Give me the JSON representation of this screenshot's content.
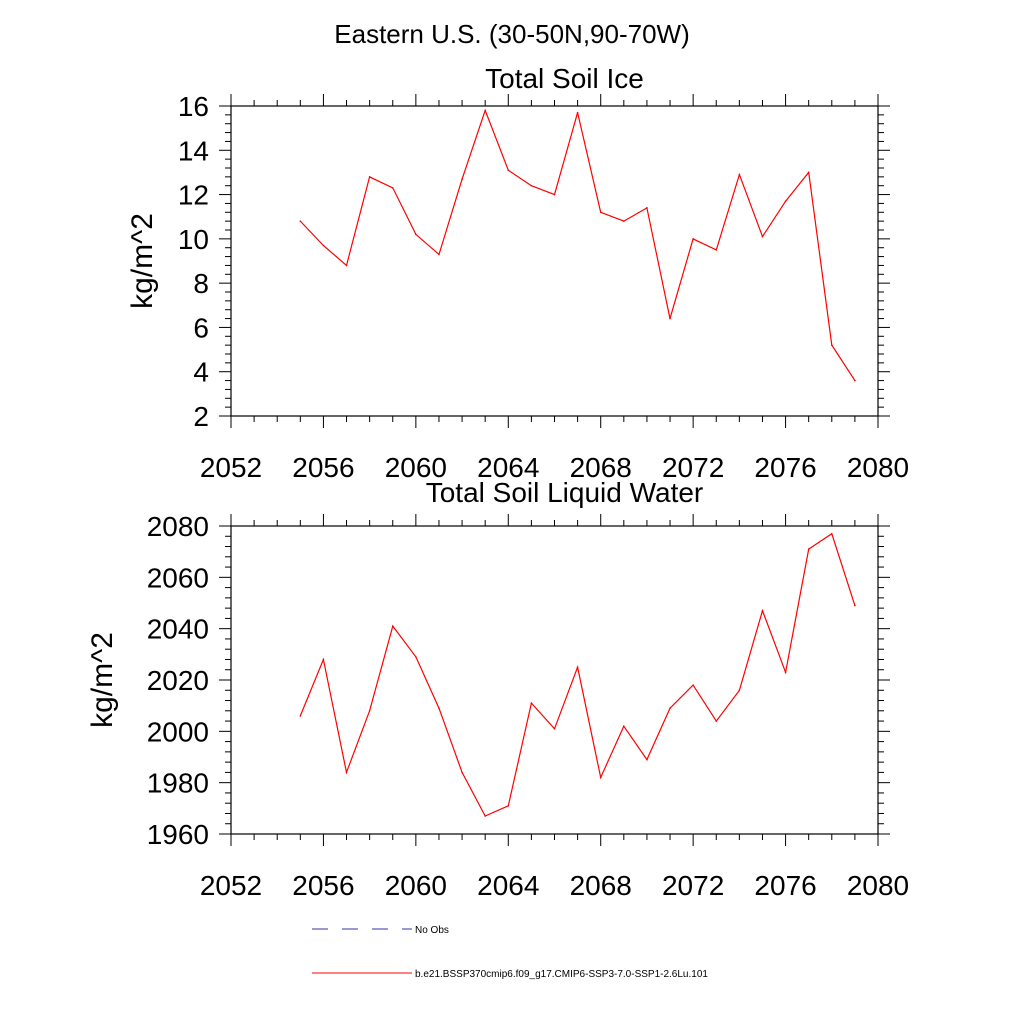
{
  "figure_title": "Eastern U.S. (30-50N,90-70W)",
  "colors": {
    "series": "#ff0000",
    "obs": "#3333aa",
    "axis": "#000000"
  },
  "chart_data": [
    {
      "type": "line",
      "title": "Total Soil Ice",
      "xlabel": "",
      "ylabel": "kg/m^2",
      "xlim": [
        2052,
        2080
      ],
      "ylim": [
        2,
        16
      ],
      "xticks": [
        2052,
        2056,
        2060,
        2064,
        2068,
        2072,
        2076,
        2080
      ],
      "yticks": [
        2,
        4,
        6,
        8,
        10,
        12,
        14,
        16
      ],
      "x": [
        2055,
        2056,
        2057,
        2058,
        2059,
        2060,
        2061,
        2062,
        2063,
        2064,
        2065,
        2066,
        2067,
        2068,
        2069,
        2070,
        2071,
        2072,
        2073,
        2074,
        2075,
        2076,
        2077,
        2078,
        2079
      ],
      "series": [
        {
          "name": "b.e21.BSSP370cmip6.f09_g17.CMIP6-SSP3-7.0-SSP1-2.6Lu.101",
          "values": [
            10.8,
            9.7,
            8.8,
            12.8,
            12.3,
            10.2,
            9.3,
            12.7,
            15.8,
            13.1,
            12.4,
            12.0,
            15.7,
            11.2,
            10.8,
            11.4,
            6.4,
            10.0,
            9.5,
            12.9,
            10.1,
            11.7,
            13.0,
            5.2,
            3.6
          ]
        }
      ],
      "grid": false
    },
    {
      "type": "line",
      "title": "Total Soil Liquid Water",
      "xlabel": "",
      "ylabel": "kg/m^2",
      "xlim": [
        2052,
        2080
      ],
      "ylim": [
        1960,
        2080
      ],
      "xticks": [
        2052,
        2056,
        2060,
        2064,
        2068,
        2072,
        2076,
        2080
      ],
      "yticks": [
        1960,
        1980,
        2000,
        2020,
        2040,
        2060,
        2080
      ],
      "x": [
        2055,
        2056,
        2057,
        2058,
        2059,
        2060,
        2061,
        2062,
        2063,
        2064,
        2065,
        2066,
        2067,
        2068,
        2069,
        2070,
        2071,
        2072,
        2073,
        2074,
        2075,
        2076,
        2077,
        2078,
        2079
      ],
      "series": [
        {
          "name": "b.e21.BSSP370cmip6.f09_g17.CMIP6-SSP3-7.0-SSP1-2.6Lu.101",
          "values": [
            2006,
            2028,
            1984,
            2008,
            2041,
            2029,
            2009,
            1984,
            1967,
            1971,
            2011,
            2001,
            2025,
            1982,
            2002,
            1989,
            2009,
            2018,
            2004,
            2016,
            2047,
            2023,
            2071,
            2077,
            2049
          ]
        }
      ],
      "grid": false
    }
  ],
  "legend": {
    "placement": "bottom-left",
    "items": [
      {
        "label": "No Obs",
        "style": "dashed",
        "color": "#3333aa"
      },
      {
        "label": "b.e21.BSSP370cmip6.f09_g17.CMIP6-SSP3-7.0-SSP1-2.6Lu.101",
        "style": "solid",
        "color": "#ff0000"
      }
    ]
  }
}
